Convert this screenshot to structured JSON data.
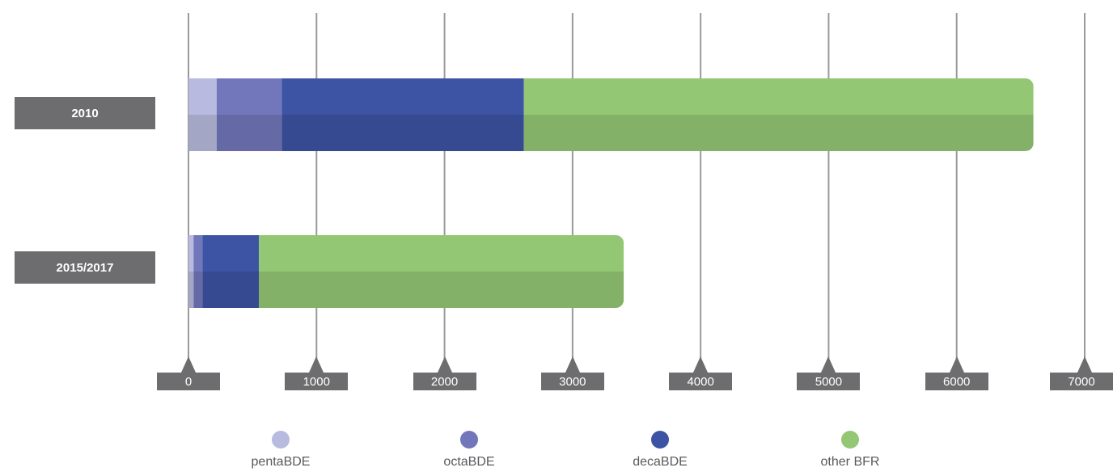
{
  "chart_data": {
    "type": "bar",
    "orientation": "horizontal",
    "stacked": true,
    "categories": [
      "2010",
      "2015/2017"
    ],
    "series": [
      {
        "name": "pentaBDE",
        "values": [
          220,
          40
        ],
        "color": "#b8badf"
      },
      {
        "name": "octaBDE",
        "values": [
          510,
          70
        ],
        "color": "#7177ba"
      },
      {
        "name": "decaBDE",
        "values": [
          1890,
          440
        ],
        "color": "#3d53a4"
      },
      {
        "name": "other BFR",
        "values": [
          3980,
          2850
        ],
        "color": "#93c774"
      }
    ],
    "x_ticks": [
      "0",
      "1000",
      "2000",
      "3000",
      "4000",
      "5000",
      "6000",
      "7000"
    ],
    "xlim": [
      0,
      7000
    ],
    "grid": "vertical",
    "legend_position": "bottom"
  }
}
